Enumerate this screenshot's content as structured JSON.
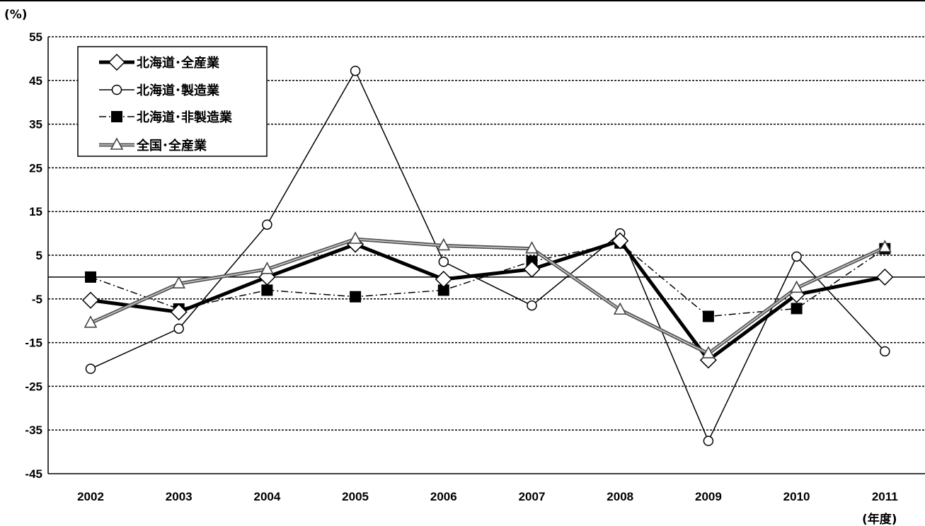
{
  "chart_data": {
    "type": "line",
    "ylabel": "(%)",
    "xlabel": "(年度)",
    "ylim": [
      -45,
      55
    ],
    "yticks": [
      55,
      45,
      35,
      25,
      15,
      5,
      -5,
      -15,
      -25,
      -35,
      -45
    ],
    "categories": [
      "2002",
      "2003",
      "2004",
      "2005",
      "2006",
      "2007",
      "2008",
      "2009",
      "2010",
      "2011"
    ],
    "legend_position": "top-left",
    "series": [
      {
        "name": "北海道･全産業",
        "marker": "diamond",
        "style": "thick-solid",
        "color": "#000000",
        "values": [
          -5.3,
          -8.0,
          0.0,
          7.5,
          -0.5,
          1.8,
          8.3,
          -19.0,
          -4.0,
          0.0
        ]
      },
      {
        "name": "北海道･製造業",
        "marker": "circle",
        "style": "thin-solid",
        "color": "#000000",
        "values": [
          -21.0,
          -11.8,
          12.0,
          47.2,
          3.5,
          -6.5,
          10.0,
          -37.5,
          4.7,
          -17.0
        ]
      },
      {
        "name": "北海道･非製造業",
        "marker": "square",
        "style": "dash-dot",
        "color": "#000000",
        "values": [
          0.0,
          -7.3,
          -3.0,
          -4.5,
          -3.0,
          3.6,
          7.8,
          -9.0,
          -7.2,
          6.5
        ]
      },
      {
        "name": "全国･全産業",
        "marker": "triangle",
        "style": "double-gray",
        "color": "#555555",
        "values": [
          -10.5,
          -1.5,
          1.8,
          8.7,
          7.2,
          6.5,
          -7.5,
          -17.5,
          -2.5,
          6.8
        ]
      }
    ]
  }
}
